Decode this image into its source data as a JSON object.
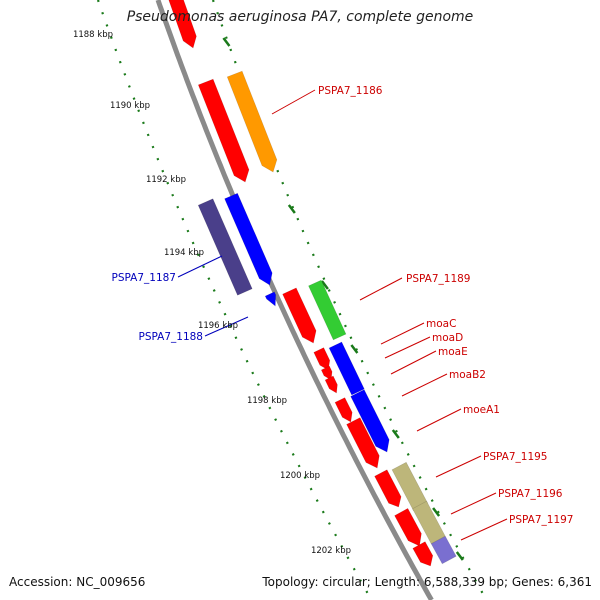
{
  "title": "Pseudomonas aeruginosa PA7, complete genome",
  "footer": {
    "accession": "Accession: NC_009656",
    "topology": "Topology: circular; Length: 6,588,339 bp; Genes: 6,361"
  },
  "colors": {
    "backbone": "#8a8a8a",
    "tick": "#1a7a1a",
    "label_fwd": "#cc0000",
    "label_rev": "#0000bb"
  },
  "kbp_labels": [
    "1188 kbp",
    "1190 kbp",
    "1192 kbp",
    "1194 kbp",
    "1196 kbp",
    "1198 kbp",
    "1200 kbp",
    "1202 kbp"
  ],
  "genes": [
    {
      "name": "",
      "color": "#ff0000"
    },
    {
      "name": "PSPA7_1186",
      "color": "#ff9900"
    },
    {
      "name": "",
      "color": "#ff0000"
    },
    {
      "name": "PSPA7_1187",
      "color": "#4a3f8a"
    },
    {
      "name": "",
      "color": "#0000ff"
    },
    {
      "name": "PSPA7_1188",
      "color": "#0000ff"
    },
    {
      "name": "",
      "color": "#ff0000"
    },
    {
      "name": "PSPA7_1189",
      "color": "#33cc33"
    },
    {
      "name": "moaC",
      "color": "#ff0000"
    },
    {
      "name": "moaD",
      "color": "#ff0000"
    },
    {
      "name": "moaE",
      "color": "#ff0000"
    },
    {
      "name": "moaB2",
      "color": "#0000ff"
    },
    {
      "name": "",
      "color": "#ff0000"
    },
    {
      "name": "moeA1",
      "color": "#0000ff"
    },
    {
      "name": "",
      "color": "#ff0000"
    },
    {
      "name": "PSPA7_1195",
      "color": "#ff0000"
    },
    {
      "name": "",
      "color": "#bdb67a"
    },
    {
      "name": "PSPA7_1196",
      "color": "#ff0000"
    },
    {
      "name": "",
      "color": "#bdb67a"
    },
    {
      "name": "PSPA7_1197",
      "color": "#7a6fd0"
    },
    {
      "name": "",
      "color": "#ff0000"
    }
  ]
}
